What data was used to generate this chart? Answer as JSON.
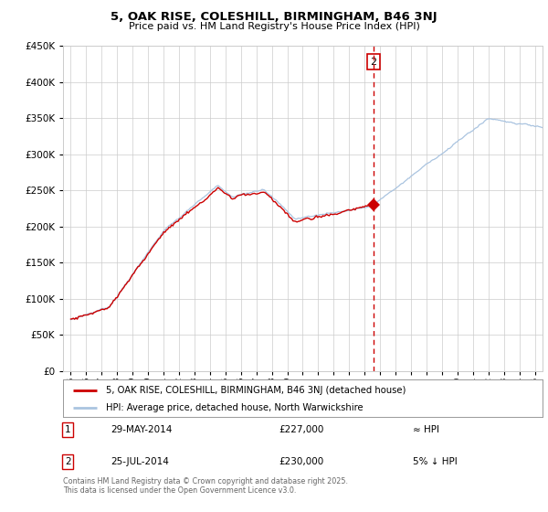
{
  "title": "5, OAK RISE, COLESHILL, BIRMINGHAM, B46 3NJ",
  "subtitle": "Price paid vs. HM Land Registry's House Price Index (HPI)",
  "hpi_label": "HPI: Average price, detached house, North Warwickshire",
  "property_label": "5, OAK RISE, COLESHILL, BIRMINGHAM, B46 3NJ (detached house)",
  "footnote": "Contains HM Land Registry data © Crown copyright and database right 2025.\nThis data is licensed under the Open Government Licence v3.0.",
  "sale1_date": "29-MAY-2014",
  "sale1_price": "£227,000",
  "sale1_relation": "≈ HPI",
  "sale2_date": "25-JUL-2014",
  "sale2_price": "£230,000",
  "sale2_relation": "5% ↓ HPI",
  "vline_x": 2014.57,
  "sale1_marker_x": 2014.41,
  "sale1_marker_y": 227000,
  "sale2_marker_x": 2014.57,
  "sale2_marker_y": 230000,
  "ylim": [
    0,
    450000
  ],
  "xlim": [
    1994.5,
    2025.5
  ],
  "hpi_color": "#aac4e0",
  "property_color": "#cc0000",
  "vline_color": "#cc0000",
  "grid_color": "#cccccc",
  "background_color": "#ffffff",
  "annotation_box_color": "#cc0000",
  "x_tick_start": 1995,
  "x_tick_end": 2025
}
